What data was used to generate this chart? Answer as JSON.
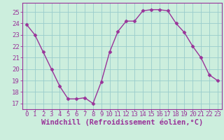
{
  "hours": [
    0,
    1,
    2,
    3,
    4,
    5,
    6,
    7,
    8,
    9,
    10,
    11,
    12,
    13,
    14,
    15,
    16,
    17,
    18,
    19,
    20,
    21,
    22,
    23
  ],
  "values": [
    23.9,
    23.0,
    21.5,
    20.0,
    18.5,
    17.4,
    17.4,
    17.5,
    17.0,
    18.9,
    21.5,
    23.3,
    24.2,
    24.2,
    25.1,
    25.2,
    25.2,
    25.1,
    24.0,
    23.2,
    22.0,
    21.0,
    19.5,
    19.0
  ],
  "line_color": "#993399",
  "marker": "D",
  "marker_size": 2.5,
  "bg_color": "#cceedd",
  "grid_color": "#99cccc",
  "xlabel": "Windchill (Refroidissement éolien,°C)",
  "xlabel_color": "#993399",
  "xlabel_fontsize": 7.5,
  "tick_color": "#993399",
  "tick_fontsize": 6.5,
  "ylim": [
    16.5,
    25.8
  ],
  "yticks": [
    17,
    18,
    19,
    20,
    21,
    22,
    23,
    24,
    25
  ],
  "xlim": [
    -0.5,
    23.5
  ],
  "spine_color": "#993399",
  "line_width": 1.0
}
